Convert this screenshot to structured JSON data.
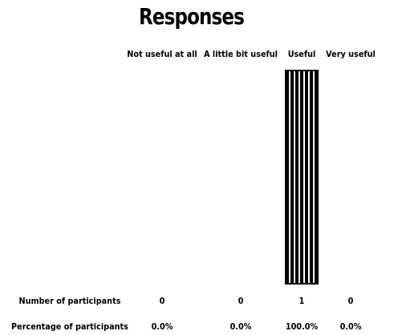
{
  "chart_data": {
    "type": "bar",
    "title": "Responses",
    "categories": [
      "Not useful at all",
      "A little bit useful",
      "Useful",
      "Very useful"
    ],
    "values": [
      0,
      0,
      1,
      0
    ],
    "percentages": [
      "0.0%",
      "0.0%",
      "100.0%",
      "0.0%"
    ],
    "row_labels": {
      "counts": "Number of participants",
      "percents": "Percentage of participants"
    },
    "ylim": [
      0,
      1
    ],
    "grid": false,
    "bar_color": "#000000",
    "stripe_color": "#ffffff"
  }
}
